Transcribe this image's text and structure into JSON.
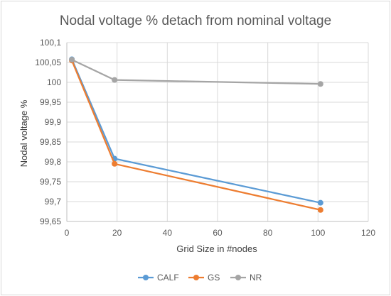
{
  "chart_data": {
    "type": "scatter",
    "title": "Nodal voltage % detach from nominal voltage",
    "xlabel": "Grid Size in #nodes",
    "ylabel": "Nodal voltage %",
    "xlim": [
      0,
      120
    ],
    "ylim": [
      99.65,
      100.1
    ],
    "xticks": [
      0,
      20,
      40,
      60,
      80,
      100,
      120
    ],
    "yticks": [
      99.65,
      99.7,
      99.75,
      99.8,
      99.85,
      99.9,
      99.95,
      100,
      100.05,
      100.1
    ],
    "xtick_labels": [
      "0",
      "20",
      "40",
      "60",
      "80",
      "100",
      "120"
    ],
    "ytick_labels": [
      "99,65",
      "99,7",
      "99,75",
      "99,8",
      "99,85",
      "99,9",
      "99,95",
      "100",
      "100,05",
      "100,1"
    ],
    "grid": true,
    "legend_position": "bottom",
    "series": [
      {
        "name": "CALF",
        "color": "#5b9bd5",
        "x": [
          2,
          19,
          101
        ],
        "y": [
          100.058,
          99.808,
          99.697
        ]
      },
      {
        "name": "GS",
        "color": "#ed7d31",
        "x": [
          2,
          19,
          101
        ],
        "y": [
          100.055,
          99.795,
          99.679
        ]
      },
      {
        "name": "NR",
        "color": "#a5a5a5",
        "x": [
          2,
          19,
          101
        ],
        "y": [
          100.057,
          100.006,
          99.996
        ]
      }
    ]
  }
}
